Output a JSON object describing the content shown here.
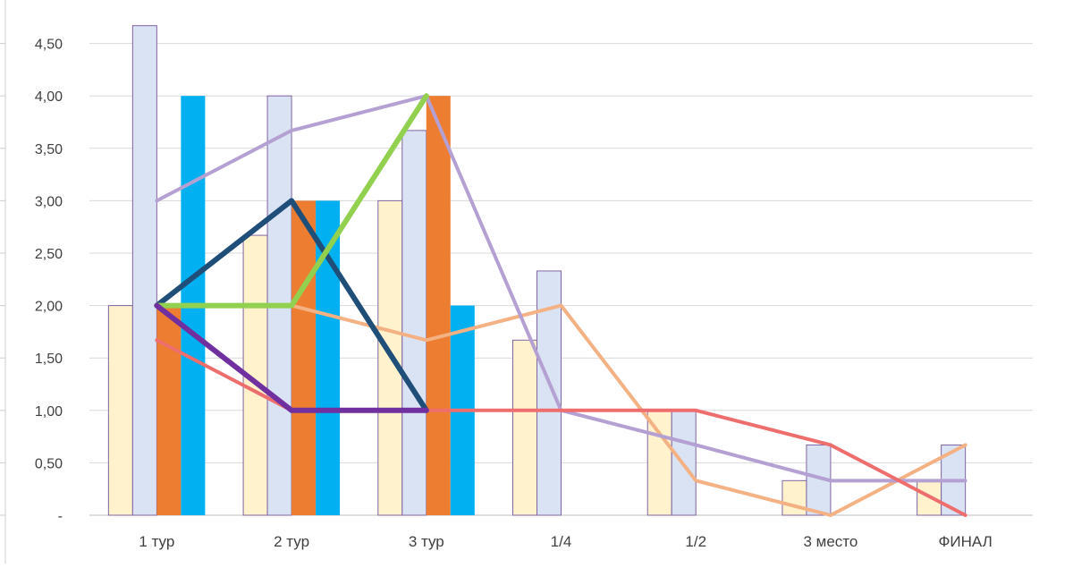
{
  "chart_data": {
    "type": "bar",
    "title": "",
    "xlabel": "",
    "ylabel": "",
    "ylim": [
      0,
      4.75
    ],
    "grid": true,
    "legend": "none",
    "categories": [
      "1 тур",
      "2 тур",
      "3 тур",
      "1/4",
      "1/2",
      "3 место",
      "ФИНАЛ"
    ],
    "y_ticks": [
      {
        "value": 0,
        "label": "-"
      },
      {
        "value": 0.5,
        "label": "0,50"
      },
      {
        "value": 1.0,
        "label": "1,00"
      },
      {
        "value": 1.5,
        "label": "1,50"
      },
      {
        "value": 2.0,
        "label": "2,00"
      },
      {
        "value": 2.5,
        "label": "2,50"
      },
      {
        "value": 3.0,
        "label": "3,00"
      },
      {
        "value": 3.5,
        "label": "3,50"
      },
      {
        "value": 4.0,
        "label": "4,00"
      },
      {
        "value": 4.5,
        "label": "4,50"
      }
    ],
    "bar_series": [
      {
        "color": "#FFF2CC",
        "stroke": "#8064A2",
        "values": [
          2.0,
          2.67,
          3.0,
          1.67,
          1.0,
          0.33,
          0.33
        ]
      },
      {
        "color": "#DAE3F3",
        "stroke": "#8064A2",
        "values": [
          4.67,
          4.0,
          3.67,
          2.33,
          1.0,
          0.67,
          0.67
        ]
      },
      {
        "color": "#ED7D31",
        "stroke": "",
        "values": [
          2.0,
          3.0,
          4.0,
          null,
          null,
          null,
          null
        ]
      },
      {
        "color": "#00B0F0",
        "stroke": "",
        "values": [
          4.0,
          3.0,
          2.0,
          null,
          null,
          null,
          null
        ]
      }
    ],
    "line_series": [
      {
        "color": "#F4B183",
        "width": 4,
        "values": [
          2.0,
          2.0,
          1.67,
          2.0,
          0.33,
          0.0,
          0.67
        ]
      },
      {
        "color": "#B4A0D2",
        "width": 4,
        "values": [
          3.0,
          3.67,
          4.0,
          1.0,
          0.67,
          0.33,
          0.33
        ]
      },
      {
        "color": "#EE6E6E",
        "width": 4,
        "values": [
          1.67,
          1.0,
          1.0,
          1.0,
          1.0,
          0.67,
          0.0
        ]
      },
      {
        "color": "#1F4E79",
        "width": 6,
        "values": [
          2.0,
          3.0,
          1.0,
          null,
          null,
          null,
          null
        ]
      },
      {
        "color": "#92D050",
        "width": 6,
        "values": [
          2.0,
          2.0,
          4.0,
          null,
          null,
          null,
          null
        ]
      },
      {
        "color": "#7030A0",
        "width": 6,
        "values": [
          2.0,
          1.0,
          1.0,
          null,
          null,
          null,
          null
        ]
      }
    ]
  }
}
